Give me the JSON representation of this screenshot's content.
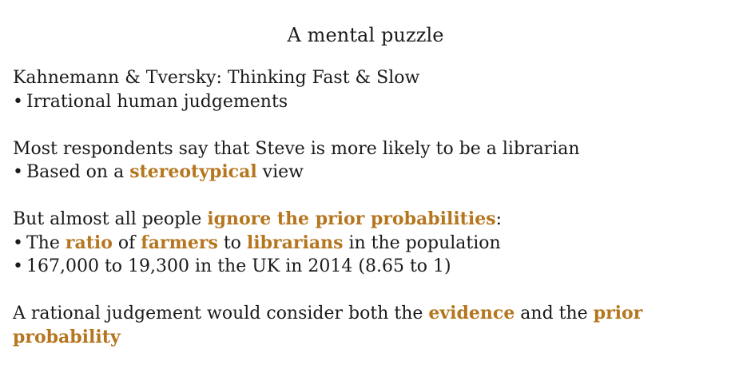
{
  "slide": {
    "title": "A mental puzzle",
    "block1": {
      "heading": "Kahnemann & Tversky: Thinking Fast & Slow",
      "bullet1": "Irrational human judgements"
    },
    "block2": {
      "heading": "Most respondents say that Steve is more likely to be a librarian",
      "bullet1_pre": "Based on a ",
      "bullet1_hl": "stereotypical",
      "bullet1_post": " view"
    },
    "block3": {
      "heading_pre": "But almost all people ",
      "heading_hl": "ignore the prior probabilities",
      "heading_post": ":",
      "bullet1_a": "The ",
      "bullet1_hl1": "ratio",
      "bullet1_b": " of ",
      "bullet1_hl2": "farmers",
      "bullet1_c": " to ",
      "bullet1_hl3": "librarians",
      "bullet1_d": " in the population",
      "bullet2": "167,000 to 19,300 in the UK in 2014 (8.65 to 1)"
    },
    "block4": {
      "text_a": "A rational judgement would consider both the ",
      "hl1": "evidence",
      "text_b": " and the ",
      "hl2": "prior probability"
    },
    "bullet_glyph": "•",
    "accent_color": "#b5761f"
  }
}
